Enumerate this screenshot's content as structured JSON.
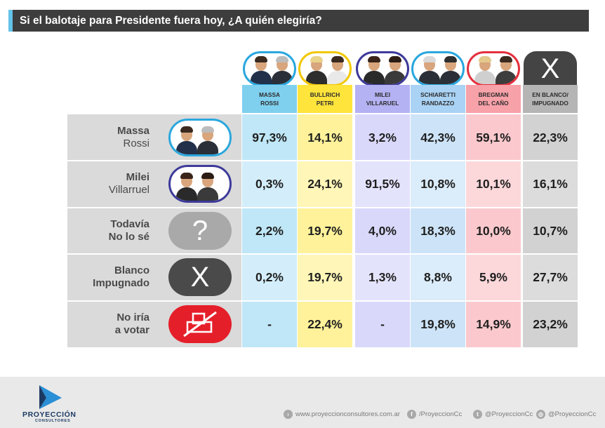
{
  "title": "Si el balotaje para Presidente fuera hoy, ¿A quién elegiría?",
  "colors": {
    "massa_rossi": "#7fd0ef",
    "bullrich_petri": "#ffe43b",
    "milei_villarruel": "#b4b2f3",
    "schiaretti_randazzo": "#a9d2f4",
    "bregman_del_cano": "#f7a1a8",
    "en_blanco": "#b5b5b5"
  },
  "columns": [
    {
      "line1": "MASSA",
      "line2": "ROSSI"
    },
    {
      "line1": "BULLRICH",
      "line2": "PETRI"
    },
    {
      "line1": "MILEI",
      "line2": "VILLARUEL"
    },
    {
      "line1": "SCHIARETTI",
      "line2": "RANDAZZO"
    },
    {
      "line1": "BREGMAN",
      "line2": "DEL CAÑO"
    },
    {
      "line1": "EN BLANCO/",
      "line2": "IMPUGNADO"
    }
  ],
  "rows": [
    {
      "line1": "Massa",
      "line2": "Rossi",
      "icon": "massa-rossi-photo"
    },
    {
      "line1": "Milei",
      "line2": "Villarruel",
      "icon": "milei-villarruel-photo"
    },
    {
      "line1": "Todavía",
      "line2": "No lo sé",
      "icon": "question-icon",
      "glyph": "?"
    },
    {
      "line1": "Blanco",
      "line2": "Impugnado",
      "icon": "x-icon",
      "glyph": "X"
    },
    {
      "line1": "No iría",
      "line2": "a votar",
      "icon": "crossed-ballot-icon"
    }
  ],
  "header_x_glyph": "X",
  "chart_data": {
    "type": "table",
    "title": "Si el balotaje para Presidente fuera hoy, ¿A quién elegiría?",
    "row_labels": [
      "Massa Rossi",
      "Milei Villarruel",
      "Todavía No lo sé",
      "Blanco Impugnado",
      "No iría a votar"
    ],
    "column_labels": [
      "MASSA ROSSI",
      "BULLRICH PETRI",
      "MILEI VILLARUEL",
      "SCHIARETTI RANDAZZO",
      "BREGMAN DEL CAÑO",
      "EN BLANCO/ IMPUGNADO"
    ],
    "values": [
      [
        "97,3%",
        "14,1%",
        "3,2%",
        "42,3%",
        "59,1%",
        "22,3%"
      ],
      [
        "0,3%",
        "24,1%",
        "91,5%",
        "10,8%",
        "10,1%",
        "16,1%"
      ],
      [
        "2,2%",
        "19,7%",
        "4,0%",
        "18,3%",
        "10,0%",
        "10,7%"
      ],
      [
        "0,2%",
        "19,7%",
        "1,3%",
        "8,8%",
        "5,9%",
        "27,7%"
      ],
      [
        "-",
        "22,4%",
        "-",
        "19,8%",
        "14,9%",
        "23,2%"
      ]
    ]
  },
  "footer": {
    "logo_name": "PROYECCIÓN",
    "logo_sub": "CONSULTORES",
    "website": "www.proyeccionconsultores.com.ar",
    "facebook": "/ProyeccionCc",
    "twitter": "@ProyeccionCc",
    "instagram": "@ProyeccionCc"
  }
}
